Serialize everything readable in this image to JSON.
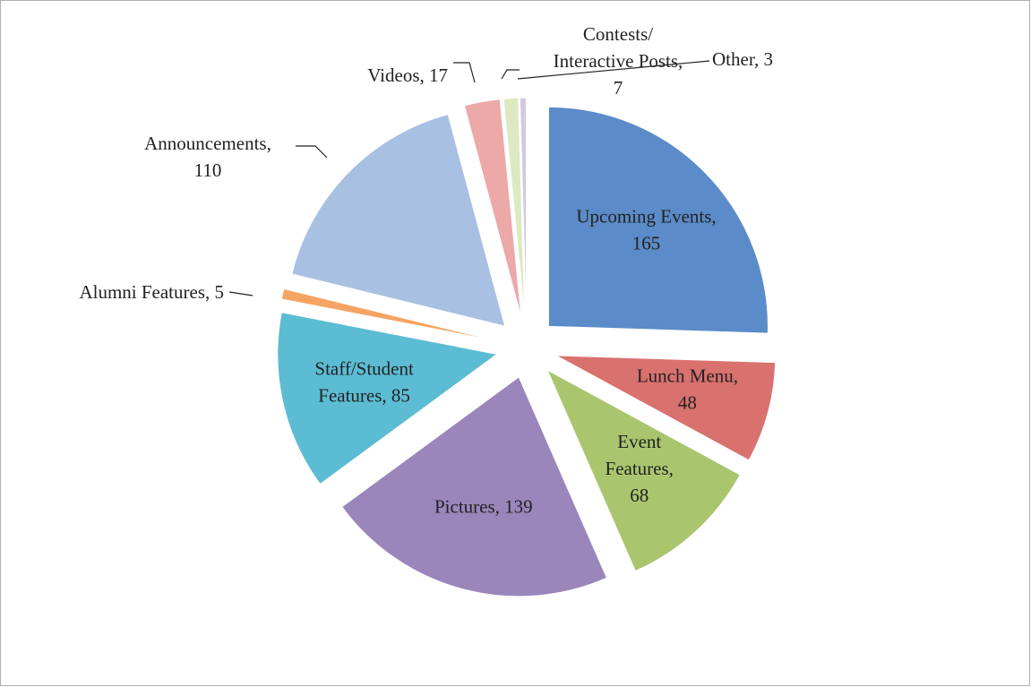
{
  "chart_data": {
    "type": "pie",
    "categories": [
      "Upcoming Events",
      "Lunch Menu",
      "Event Features",
      "Pictures",
      "Staff/Student Features",
      "Alumni Features",
      "Announcements",
      "Videos",
      "Contests/Interactive Posts",
      "Other"
    ],
    "values": [
      165,
      48,
      68,
      139,
      85,
      5,
      110,
      17,
      7,
      3
    ],
    "value_labels": [
      "Upcoming Events,\n165",
      "Lunch Menu,\n48",
      "Event\nFeatures,\n68",
      "Pictures, 139",
      "Staff/Student\nFeatures, 85",
      "Alumni Features, 5",
      "Announcements,\n110",
      "Videos, 17",
      "Contests/\nInteractive Posts,\n7",
      "Other, 3"
    ],
    "colors": [
      "#5b8bc8",
      "#d9716e",
      "#a9c66f",
      "#9a86bb",
      "#5cbcd3",
      "#f5a463",
      "#a8c0e2",
      "#eda8a8",
      "#dce9c2",
      "#d4c8e2"
    ],
    "exploded": true
  }
}
